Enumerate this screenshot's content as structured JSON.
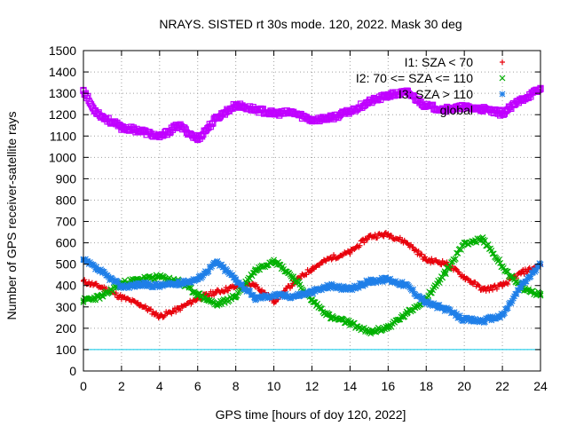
{
  "chart_data": {
    "type": "scatter",
    "title": "NRAYS. SISTED rt 30s mode. 120, 2022. Mask 30 deg",
    "xlabel": "GPS time [hours of doy 120, 2022]",
    "ylabel": "Number of GPS receiver-satellite rays",
    "xlim": [
      0,
      24
    ],
    "ylim": [
      0,
      1500
    ],
    "xticks": [
      0,
      2,
      4,
      6,
      8,
      10,
      12,
      14,
      16,
      18,
      20,
      22,
      24
    ],
    "yticks": [
      0,
      100,
      200,
      300,
      400,
      500,
      600,
      700,
      800,
      900,
      1000,
      1100,
      1200,
      1300,
      1400,
      1500
    ],
    "grid": true,
    "legend_position": "top-right",
    "reference_line": {
      "y": 100,
      "color": "#00c8e8"
    },
    "series": [
      {
        "name": "I1: SZA < 70",
        "marker": "+",
        "color": "#e8000b",
        "x": [
          0,
          1,
          2,
          3,
          4,
          5,
          6,
          7,
          8,
          9,
          10,
          11,
          12,
          13,
          14,
          15,
          16,
          17,
          18,
          19,
          20,
          21,
          22,
          23,
          24
        ],
        "y": [
          420,
          390,
          345,
          310,
          255,
          290,
          340,
          370,
          395,
          405,
          325,
          410,
          480,
          530,
          555,
          630,
          640,
          600,
          520,
          505,
          440,
          380,
          400,
          460,
          495
        ]
      },
      {
        "name": "I2: 70 <= SZA <= 110",
        "marker": "x",
        "color": "#00b000",
        "x": [
          0,
          1,
          2,
          3,
          4,
          5,
          6,
          7,
          8,
          9,
          10,
          11,
          12,
          13,
          14,
          15,
          16,
          17,
          18,
          19,
          20,
          21,
          22,
          23,
          24
        ],
        "y": [
          330,
          350,
          410,
          430,
          440,
          420,
          360,
          310,
          350,
          470,
          520,
          440,
          330,
          250,
          225,
          180,
          205,
          270,
          340,
          460,
          600,
          615,
          490,
          385,
          360
        ]
      },
      {
        "name": "I3: SZA > 110",
        "marker": "*",
        "color": "#1f7fe8",
        "x": [
          0,
          1,
          2,
          3,
          4,
          5,
          6,
          7,
          8,
          9,
          10,
          11,
          12,
          13,
          14,
          15,
          16,
          17,
          18,
          19,
          20,
          21,
          22,
          23,
          24
        ],
        "y": [
          520,
          460,
          395,
          405,
          400,
          410,
          430,
          510,
          430,
          340,
          355,
          350,
          370,
          400,
          380,
          420,
          430,
          400,
          320,
          290,
          240,
          235,
          260,
          400,
          500
        ]
      },
      {
        "name": "global",
        "marker": "square",
        "color": "#c000ff",
        "x": [
          0,
          0.5,
          1,
          2,
          3,
          4,
          5,
          6,
          7,
          8,
          9,
          10,
          11,
          12,
          13,
          14,
          15,
          16,
          17,
          18,
          19,
          20,
          21,
          22,
          23,
          24
        ],
        "y": [
          1315,
          1230,
          1190,
          1140,
          1125,
          1095,
          1150,
          1085,
          1185,
          1245,
          1225,
          1205,
          1210,
          1175,
          1185,
          1215,
          1260,
          1290,
          1305,
          1240,
          1225,
          1235,
          1225,
          1205,
          1270,
          1320
        ]
      }
    ]
  }
}
